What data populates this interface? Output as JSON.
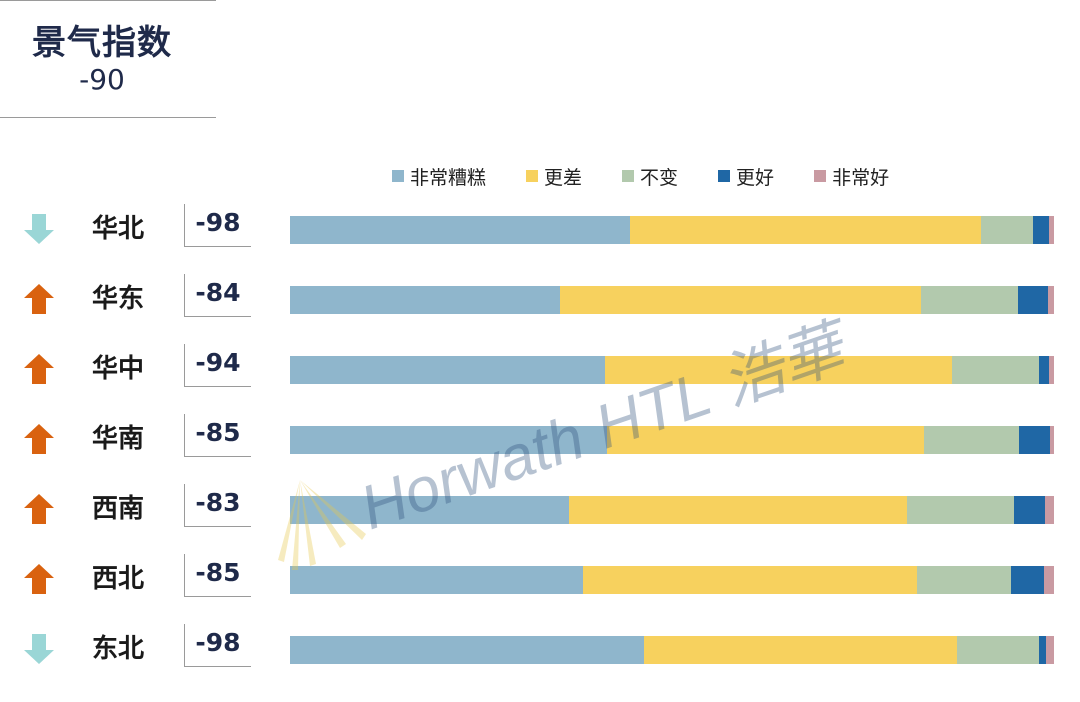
{
  "index": {
    "title": "景气指数",
    "value": "-90"
  },
  "legend": [
    {
      "label": "非常糟糕",
      "color": "#8fb6cc"
    },
    {
      "label": "更差",
      "color": "#f7d15e"
    },
    {
      "label": "不变",
      "color": "#b2c9ad"
    },
    {
      "label": "更好",
      "color": "#1f67a5"
    },
    {
      "label": "非常好",
      "color": "#c99aa2"
    }
  ],
  "arrow_colors": {
    "up": "#d9620f",
    "down": "#9ad6d6"
  },
  "chart_data": {
    "type": "bar",
    "stacked": true,
    "orientation": "horizontal",
    "categories": [
      "华北",
      "华东",
      "华中",
      "华南",
      "西南",
      "西北",
      "东北"
    ],
    "series": [
      {
        "name": "非常糟糕",
        "values": [
          44.5,
          35.3,
          41.2,
          41.5,
          36.5,
          38.3,
          46.4
        ]
      },
      {
        "name": "更差",
        "values": [
          45.9,
          47.3,
          45.5,
          41.5,
          44.3,
          43.8,
          40.9
        ]
      },
      {
        "name": "不变",
        "values": [
          6.9,
          12.7,
          11.4,
          12.4,
          14.0,
          12.3,
          10.7
        ]
      },
      {
        "name": "更好",
        "values": [
          2.0,
          3.9,
          1.2,
          4.1,
          4.0,
          4.3,
          0.9
        ]
      },
      {
        "name": "非常好",
        "values": [
          0.7,
          0.8,
          0.7,
          0.5,
          1.2,
          1.3,
          1.1
        ]
      }
    ]
  },
  "rows": [
    {
      "region": "华北",
      "score": "-98",
      "trend": "down"
    },
    {
      "region": "华东",
      "score": "-84",
      "trend": "up"
    },
    {
      "region": "华中",
      "score": "-94",
      "trend": "up"
    },
    {
      "region": "华南",
      "score": "-85",
      "trend": "up"
    },
    {
      "region": "西南",
      "score": "-83",
      "trend": "up"
    },
    {
      "region": "西北",
      "score": "-85",
      "trend": "up"
    },
    {
      "region": "东北",
      "score": "-98",
      "trend": "down"
    }
  ],
  "watermark": {
    "text": "Horwath HTL 浩華"
  }
}
